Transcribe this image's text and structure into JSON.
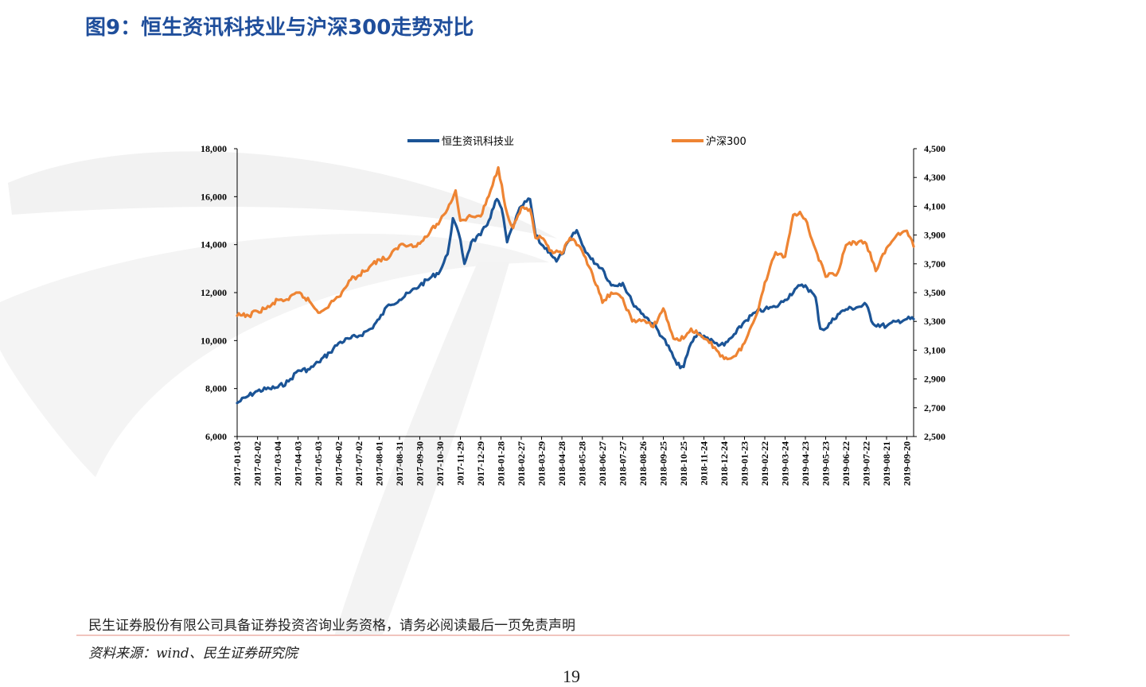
{
  "figure": {
    "title": "图9：恒生资讯科技业与沪深300走势对比"
  },
  "footer": {
    "disclaimer": "民生证券股份有限公司具备证券投资咨询业务资格，请务必阅读最后一页免责声明",
    "source": "资料来源：wind、民生证券研究院",
    "page_number": "19"
  },
  "colors": {
    "series_blue": "#1b5496",
    "series_orange": "#ee8433",
    "title_blue": "#1f4e9b",
    "divider": "#f1c4be"
  },
  "chart_data": {
    "type": "line",
    "title": "",
    "legend_placement": "top-center",
    "grid": false,
    "x_tick_labels": [
      "2017-01-03",
      "2017-02-02",
      "2017-03-04",
      "2017-04-03",
      "2017-05-03",
      "2017-06-02",
      "2017-07-02",
      "2017-08-01",
      "2017-08-31",
      "2017-09-30",
      "2017-10-30",
      "2017-11-29",
      "2017-12-29",
      "2018-01-28",
      "2018-02-27",
      "2018-03-29",
      "2018-04-28",
      "2018-05-28",
      "2018-06-27",
      "2018-07-27",
      "2018-08-26",
      "2018-09-25",
      "2018-10-25",
      "2018-11-24",
      "2018-12-24",
      "2019-01-23",
      "2019-02-22",
      "2019-03-24",
      "2019-04-23",
      "2019-05-23",
      "2019-06-22",
      "2019-07-22",
      "2019-08-21",
      "2019-09-20"
    ],
    "x_range": [
      "2017-01-03",
      "2019-09-30"
    ],
    "y_left": {
      "ylim": [
        6000,
        18000
      ],
      "tick_labels": [
        "6,000",
        "8,000",
        "10,000",
        "12,000",
        "14,000",
        "16,000",
        "18,000"
      ]
    },
    "y_right": {
      "ylim": [
        2500,
        4500
      ],
      "tick_labels": [
        "2,500",
        "2,700",
        "2,900",
        "3,100",
        "3,300",
        "3,500",
        "3,700",
        "3,900",
        "4,100",
        "4,300",
        "4,500"
      ]
    },
    "series": [
      {
        "name": "恒生资讯科技业",
        "axis": "left",
        "color": "#1b5496",
        "points": [
          [
            "2017-01-03",
            7400
          ],
          [
            "2017-01-20",
            7700
          ],
          [
            "2017-02-02",
            7900
          ],
          [
            "2017-02-20",
            8000
          ],
          [
            "2017-03-04",
            8050
          ],
          [
            "2017-03-20",
            8300
          ],
          [
            "2017-04-03",
            8750
          ],
          [
            "2017-04-20",
            8800
          ],
          [
            "2017-05-03",
            9100
          ],
          [
            "2017-05-20",
            9500
          ],
          [
            "2017-06-02",
            9900
          ],
          [
            "2017-06-20",
            10100
          ],
          [
            "2017-07-02",
            10200
          ],
          [
            "2017-07-20",
            10500
          ],
          [
            "2017-08-01",
            10900
          ],
          [
            "2017-08-15",
            11500
          ],
          [
            "2017-08-31",
            11700
          ],
          [
            "2017-09-15",
            12000
          ],
          [
            "2017-09-30",
            12300
          ],
          [
            "2017-10-15",
            12600
          ],
          [
            "2017-10-30",
            12900
          ],
          [
            "2017-11-10",
            13600
          ],
          [
            "2017-11-18",
            15100
          ],
          [
            "2017-11-29",
            14200
          ],
          [
            "2017-12-05",
            13200
          ],
          [
            "2017-12-15",
            14100
          ],
          [
            "2017-12-29",
            14400
          ],
          [
            "2018-01-10",
            15000
          ],
          [
            "2018-01-22",
            15900
          ],
          [
            "2018-01-29",
            15500
          ],
          [
            "2018-02-06",
            14100
          ],
          [
            "2018-02-15",
            14800
          ],
          [
            "2018-02-27",
            15600
          ],
          [
            "2018-03-12",
            15900
          ],
          [
            "2018-03-20",
            14400
          ],
          [
            "2018-03-29",
            14000
          ],
          [
            "2018-04-10",
            13700
          ],
          [
            "2018-04-20",
            13300
          ],
          [
            "2018-04-28",
            13600
          ],
          [
            "2018-05-10",
            14200
          ],
          [
            "2018-05-20",
            14600
          ],
          [
            "2018-05-28",
            14000
          ],
          [
            "2018-06-10",
            13400
          ],
          [
            "2018-06-27",
            13000
          ],
          [
            "2018-07-10",
            12300
          ],
          [
            "2018-07-27",
            12400
          ],
          [
            "2018-08-10",
            11600
          ],
          [
            "2018-08-26",
            11100
          ],
          [
            "2018-09-10",
            10700
          ],
          [
            "2018-09-25",
            10100
          ],
          [
            "2018-10-05",
            9600
          ],
          [
            "2018-10-15",
            9000
          ],
          [
            "2018-10-25",
            8900
          ],
          [
            "2018-11-05",
            9900
          ],
          [
            "2018-11-15",
            10300
          ],
          [
            "2018-11-24",
            10200
          ],
          [
            "2018-12-10",
            9900
          ],
          [
            "2018-12-24",
            9800
          ],
          [
            "2019-01-10",
            10300
          ],
          [
            "2019-01-23",
            10800
          ],
          [
            "2019-02-10",
            11200
          ],
          [
            "2019-02-22",
            11300
          ],
          [
            "2019-03-10",
            11400
          ],
          [
            "2019-03-24",
            11700
          ],
          [
            "2019-04-10",
            12200
          ],
          [
            "2019-04-23",
            12300
          ],
          [
            "2019-05-08",
            11800
          ],
          [
            "2019-05-15",
            10500
          ],
          [
            "2019-05-23",
            10500
          ],
          [
            "2019-06-10",
            11100
          ],
          [
            "2019-06-22",
            11300
          ],
          [
            "2019-07-10",
            11400
          ],
          [
            "2019-07-22",
            11500
          ],
          [
            "2019-08-01",
            10700
          ],
          [
            "2019-08-21",
            10600
          ],
          [
            "2019-09-05",
            10800
          ],
          [
            "2019-09-20",
            10900
          ],
          [
            "2019-09-30",
            10900
          ]
        ]
      },
      {
        "name": "沪深300",
        "axis": "right",
        "color": "#ee8433",
        "points": [
          [
            "2017-01-03",
            3340
          ],
          [
            "2017-01-20",
            3340
          ],
          [
            "2017-02-02",
            3370
          ],
          [
            "2017-02-20",
            3400
          ],
          [
            "2017-03-04",
            3450
          ],
          [
            "2017-03-20",
            3450
          ],
          [
            "2017-04-03",
            3500
          ],
          [
            "2017-04-20",
            3440
          ],
          [
            "2017-05-03",
            3360
          ],
          [
            "2017-05-20",
            3420
          ],
          [
            "2017-06-02",
            3470
          ],
          [
            "2017-06-20",
            3590
          ],
          [
            "2017-07-02",
            3620
          ],
          [
            "2017-07-20",
            3690
          ],
          [
            "2017-08-01",
            3730
          ],
          [
            "2017-08-15",
            3740
          ],
          [
            "2017-08-31",
            3830
          ],
          [
            "2017-09-15",
            3830
          ],
          [
            "2017-09-30",
            3840
          ],
          [
            "2017-10-15",
            3920
          ],
          [
            "2017-10-30",
            4000
          ],
          [
            "2017-11-10",
            4080
          ],
          [
            "2017-11-22",
            4210
          ],
          [
            "2017-11-29",
            4000
          ],
          [
            "2017-12-15",
            4030
          ],
          [
            "2017-12-29",
            4030
          ],
          [
            "2018-01-10",
            4170
          ],
          [
            "2018-01-24",
            4370
          ],
          [
            "2018-02-06",
            4050
          ],
          [
            "2018-02-15",
            3950
          ],
          [
            "2018-02-27",
            4090
          ],
          [
            "2018-03-12",
            4080
          ],
          [
            "2018-03-20",
            3880
          ],
          [
            "2018-03-29",
            3880
          ],
          [
            "2018-04-10",
            3790
          ],
          [
            "2018-04-28",
            3770
          ],
          [
            "2018-05-10",
            3880
          ],
          [
            "2018-05-20",
            3830
          ],
          [
            "2018-05-28",
            3790
          ],
          [
            "2018-06-10",
            3660
          ],
          [
            "2018-06-27",
            3430
          ],
          [
            "2018-07-10",
            3500
          ],
          [
            "2018-07-27",
            3460
          ],
          [
            "2018-08-10",
            3300
          ],
          [
            "2018-08-26",
            3310
          ],
          [
            "2018-09-10",
            3260
          ],
          [
            "2018-09-25",
            3390
          ],
          [
            "2018-10-10",
            3180
          ],
          [
            "2018-10-25",
            3180
          ],
          [
            "2018-11-05",
            3250
          ],
          [
            "2018-11-15",
            3210
          ],
          [
            "2018-11-24",
            3180
          ],
          [
            "2018-12-10",
            3120
          ],
          [
            "2018-12-24",
            3040
          ],
          [
            "2019-01-10",
            3060
          ],
          [
            "2019-01-23",
            3150
          ],
          [
            "2019-02-10",
            3350
          ],
          [
            "2019-02-22",
            3570
          ],
          [
            "2019-03-10",
            3780
          ],
          [
            "2019-03-24",
            3750
          ],
          [
            "2019-04-05",
            4040
          ],
          [
            "2019-04-15",
            4060
          ],
          [
            "2019-04-23",
            4010
          ],
          [
            "2019-05-08",
            3800
          ],
          [
            "2019-05-23",
            3610
          ],
          [
            "2019-06-10",
            3640
          ],
          [
            "2019-06-22",
            3830
          ],
          [
            "2019-07-10",
            3850
          ],
          [
            "2019-07-22",
            3840
          ],
          [
            "2019-08-05",
            3650
          ],
          [
            "2019-08-21",
            3810
          ],
          [
            "2019-09-05",
            3900
          ],
          [
            "2019-09-20",
            3930
          ],
          [
            "2019-09-30",
            3820
          ]
        ]
      }
    ]
  }
}
